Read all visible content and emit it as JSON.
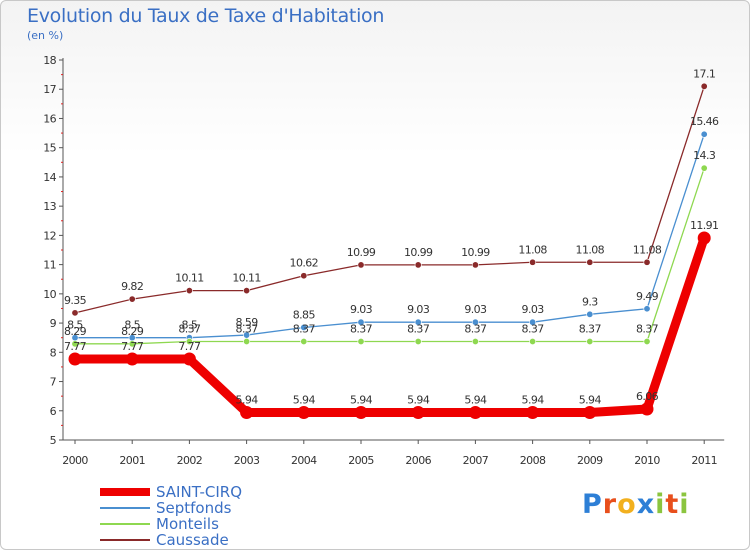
{
  "title": "Evolution du Taux de Taxe d'Habitation",
  "unit_label": "(en %)",
  "chart_data": {
    "type": "line",
    "title": "Evolution du Taux de Taxe d'Habitation",
    "ylabel": "(en %)",
    "xlabel": "",
    "ylim": [
      5,
      18
    ],
    "yticks": [
      5,
      6,
      7,
      8,
      9,
      10,
      11,
      12,
      13,
      14,
      15,
      16,
      17,
      18
    ],
    "categories": [
      "2000",
      "2001",
      "2002",
      "2003",
      "2004",
      "2005",
      "2006",
      "2007",
      "2008",
      "2009",
      "2010",
      "2011"
    ],
    "grid": false,
    "legend": "bottom-left",
    "series": [
      {
        "name": "Caussade",
        "color": "#8a2a2a",
        "values": [
          9.35,
          9.82,
          10.11,
          10.11,
          10.62,
          10.99,
          10.99,
          10.99,
          11.08,
          11.08,
          11.08,
          17.1
        ],
        "labels": [
          "9.35",
          "9.82",
          "10.11",
          "10.11",
          "10.62",
          "10.99",
          "10.99",
          "10.99",
          "11.08",
          "11.08",
          "11.08",
          "17.1"
        ]
      },
      {
        "name": "Septfonds",
        "color": "#4a8fd0",
        "values": [
          8.5,
          8.5,
          8.5,
          8.59,
          8.85,
          9.03,
          9.03,
          9.03,
          9.03,
          9.3,
          9.49,
          15.46
        ],
        "labels": [
          "8.5",
          "8.5",
          "8.5",
          "8.59",
          "8.85",
          "9.03",
          "9.03",
          "9.03",
          "9.03",
          "9.3",
          "9.49",
          "15.46"
        ]
      },
      {
        "name": "Monteils",
        "color": "#8ed850",
        "values": [
          8.29,
          8.29,
          8.37,
          8.37,
          8.37,
          8.37,
          8.37,
          8.37,
          8.37,
          8.37,
          8.37,
          14.3
        ],
        "labels": [
          "8.29",
          "8.29",
          "8.37",
          "8.37",
          "8.37",
          "8.37",
          "8.37",
          "8.37",
          "8.37",
          "8.37",
          "8.37",
          "14.3"
        ]
      },
      {
        "name": "SAINT-CIRQ",
        "color": "#ee0000",
        "values": [
          7.77,
          7.77,
          7.77,
          5.94,
          5.94,
          5.94,
          5.94,
          5.94,
          5.94,
          5.94,
          6.06,
          11.91
        ],
        "labels": [
          "7.77",
          "7.77",
          "7.77",
          "5.94",
          "5.94",
          "5.94",
          "5.94",
          "5.94",
          "5.94",
          "5.94",
          "6.06",
          "11.91"
        ]
      }
    ]
  },
  "legend": {
    "items": [
      {
        "name": "SAINT-CIRQ",
        "color": "#ee0000"
      },
      {
        "name": "Septfonds",
        "color": "#4a8fd0"
      },
      {
        "name": "Monteils",
        "color": "#8ed850"
      },
      {
        "name": "Caussade",
        "color": "#8a2a2a"
      }
    ]
  },
  "logo": {
    "letters": [
      "P",
      "r",
      "o",
      "x",
      "i",
      "t",
      "i"
    ],
    "colors": [
      "#2d7fd6",
      "#e84f1c",
      "#f2b01e",
      "#2d7fd6",
      "#8bc53f",
      "#e84f1c",
      "#8bc53f"
    ]
  }
}
